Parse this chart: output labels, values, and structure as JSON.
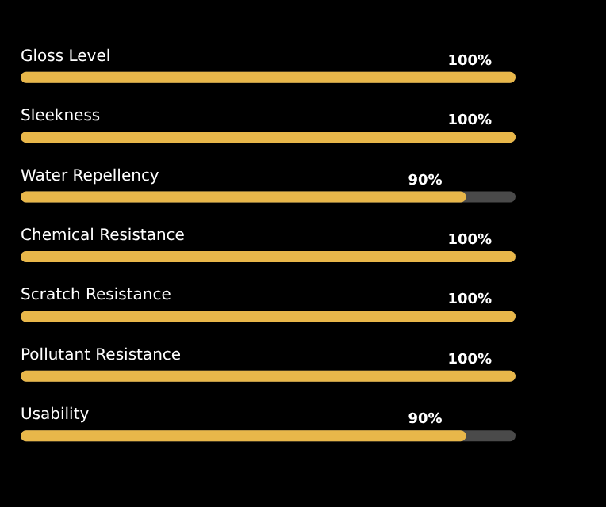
{
  "chart_data": {
    "type": "bar",
    "orientation": "horizontal",
    "categories": [
      "Gloss Level",
      "Sleekness",
      "Water Repellency",
      "Chemical Resistance",
      "Scratch Resistance",
      "Pollutant Resistance",
      "Usability"
    ],
    "values": [
      100,
      100,
      90,
      100,
      100,
      100,
      90
    ],
    "value_labels": [
      "100%",
      "100%",
      "90%",
      "100%",
      "100%",
      "100%",
      "90%"
    ],
    "color": "#e8b74a",
    "xlim": [
      0,
      100
    ],
    "tick_labels": false
  }
}
